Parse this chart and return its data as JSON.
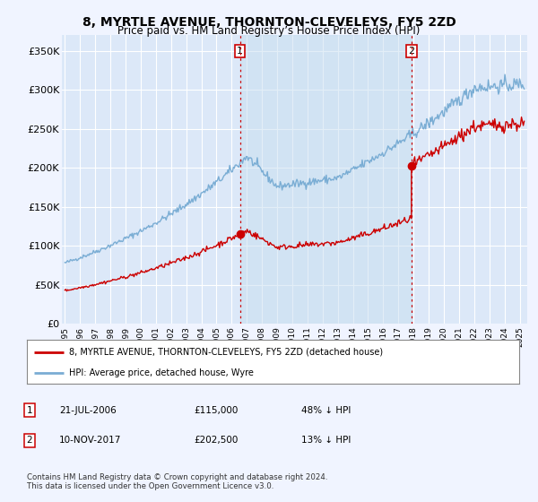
{
  "title": "8, MYRTLE AVENUE, THORNTON-CLEVELEYS, FY5 2ZD",
  "subtitle": "Price paid vs. HM Land Registry’s House Price Index (HPI)",
  "ylabel_ticks": [
    "£0",
    "£50K",
    "£100K",
    "£150K",
    "£200K",
    "£250K",
    "£300K",
    "£350K"
  ],
  "ytick_values": [
    0,
    50000,
    100000,
    150000,
    200000,
    250000,
    300000,
    350000
  ],
  "ylim": [
    0,
    370000
  ],
  "xlim_start": 1994.8,
  "xlim_end": 2025.5,
  "hpi_color": "#7aadd4",
  "price_color": "#cc0000",
  "sale1_date": 2006.55,
  "sale1_price": 115000,
  "sale2_date": 2017.86,
  "sale2_price": 202500,
  "legend_line1": "8, MYRTLE AVENUE, THORNTON-CLEVELEYS, FY5 2ZD (detached house)",
  "legend_line2": "HPI: Average price, detached house, Wyre",
  "table_row1": [
    "1",
    "21-JUL-2006",
    "£115,000",
    "48% ↓ HPI"
  ],
  "table_row2": [
    "2",
    "10-NOV-2017",
    "£202,500",
    "13% ↓ HPI"
  ],
  "footnote": "Contains HM Land Registry data © Crown copyright and database right 2024.\nThis data is licensed under the Open Government Licence v3.0.",
  "background_color": "#f0f4ff",
  "plot_bg_color": "#dce8f8",
  "grid_color": "#ffffff",
  "vline_color": "#cc0000"
}
